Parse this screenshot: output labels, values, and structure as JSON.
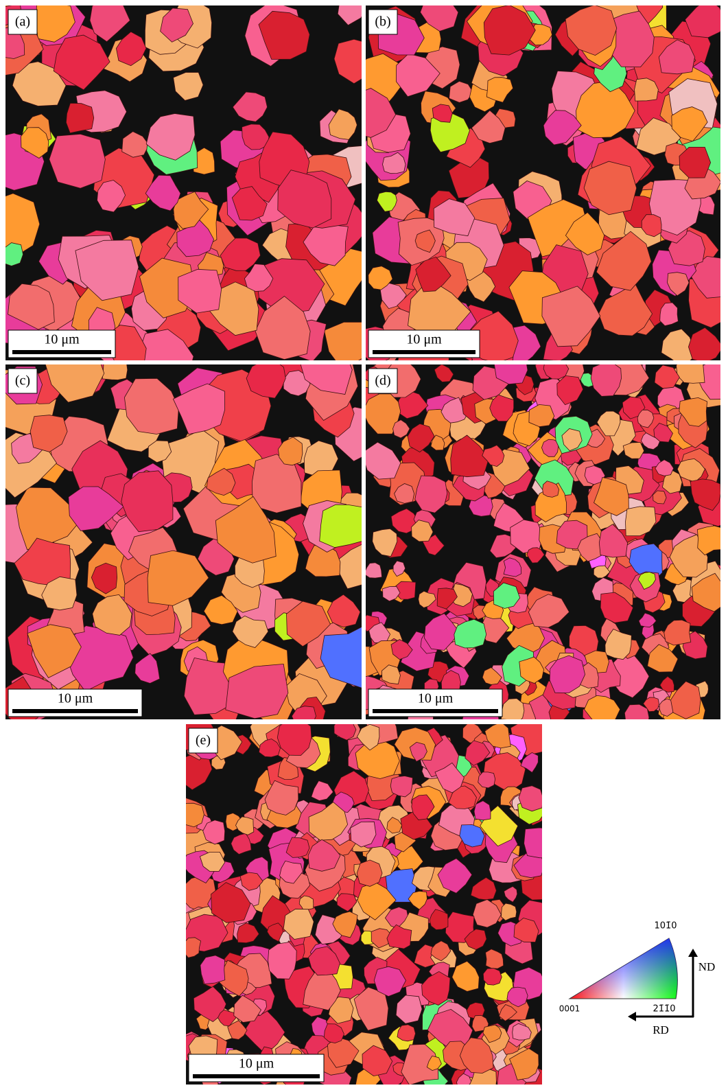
{
  "panels": [
    {
      "label": "(a)",
      "scale_bar": "10 μm"
    },
    {
      "label": "(b)",
      "scale_bar": "10 μm"
    },
    {
      "label": "(c)",
      "scale_bar": "10 μm"
    },
    {
      "label": "(d)",
      "scale_bar": "10 μm"
    },
    {
      "label": "(e)",
      "scale_bar": "10 μm"
    }
  ],
  "legend": {
    "top": "101̄0",
    "left": "0001",
    "right": "21̄1̄0",
    "nd": "ND",
    "rd": "RD"
  }
}
